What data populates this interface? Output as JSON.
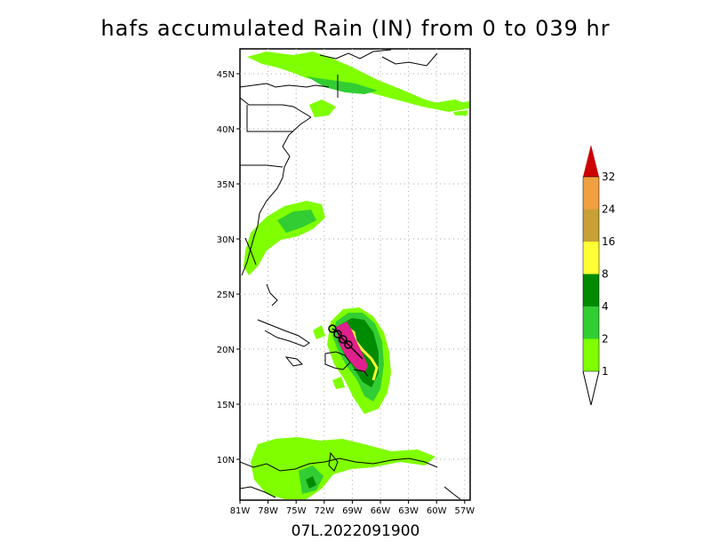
{
  "title": "hafs accumulated Rain (IN) from 0 to 039 hr",
  "footer": "07L.2022091900",
  "lon_labels": [
    "81W",
    "78W",
    "75W",
    "72W",
    "69W",
    "66W",
    "63W",
    "60W",
    "57W"
  ],
  "lat_labels": [
    "45N",
    "40N",
    "35N",
    "30N",
    "25N",
    "20N",
    "15N",
    "10N"
  ],
  "colorbar": {
    "levels": [
      "1",
      "2",
      "4",
      "8",
      "16",
      "24",
      "32"
    ],
    "colors": [
      "#7fff00",
      "#32cd32",
      "#008b00",
      "#ffff33",
      "#c8a036",
      "#f0a040",
      "#cc0000"
    ]
  },
  "colors": {
    "light_rain": "#7fff00",
    "mid_rain": "#32cd32",
    "heavy_rain": "#008b00",
    "yellow_band": "#ffff33",
    "core": "#e0208c"
  }
}
